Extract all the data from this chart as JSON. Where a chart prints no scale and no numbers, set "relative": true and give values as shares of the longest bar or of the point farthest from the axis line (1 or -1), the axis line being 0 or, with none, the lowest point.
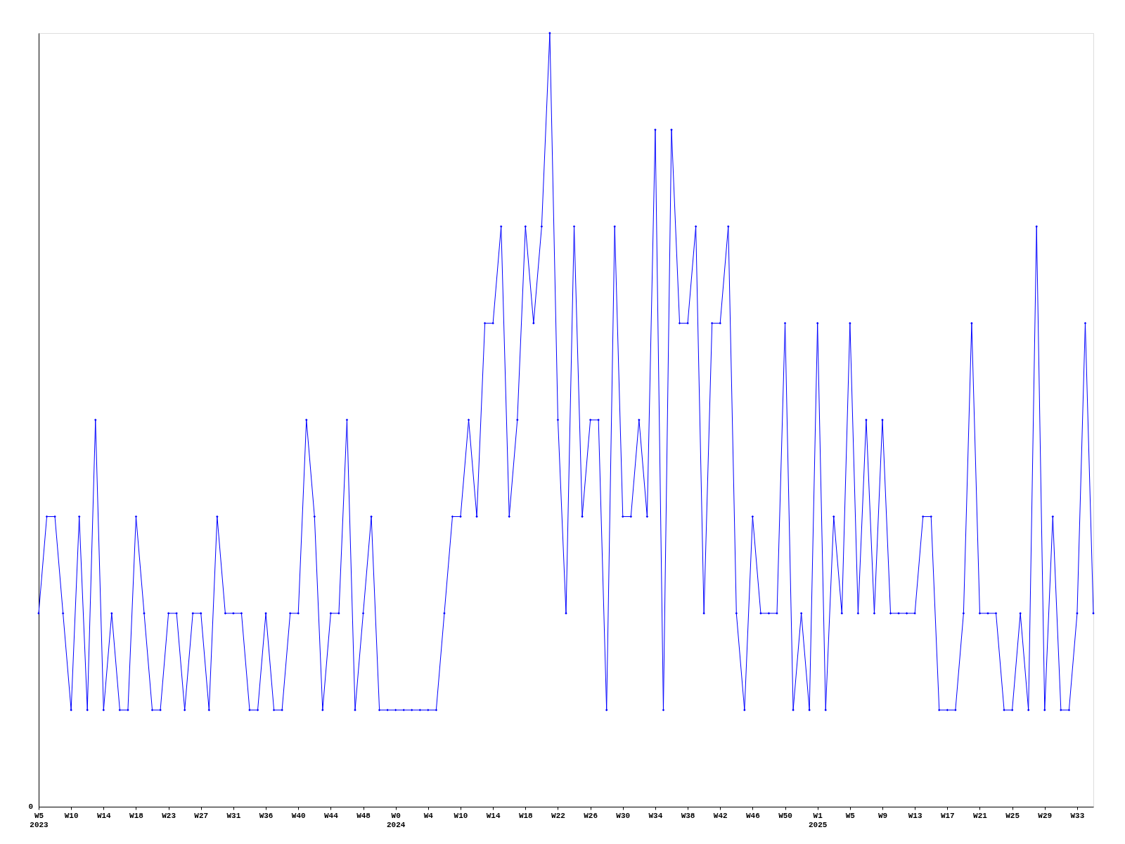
{
  "chart_data": {
    "type": "line",
    "relative": true,
    "marker": "diamond",
    "line_style": "solid",
    "grid": false,
    "categories": [
      "W5\n2023",
      null,
      null,
      null,
      "W10",
      null,
      null,
      null,
      "W14",
      null,
      null,
      null,
      "W18",
      null,
      null,
      null,
      "W23",
      null,
      null,
      null,
      "W27",
      null,
      null,
      null,
      "W31",
      null,
      null,
      null,
      "W36",
      null,
      null,
      null,
      "W40",
      null,
      null,
      null,
      "W44",
      null,
      null,
      null,
      "W48",
      null,
      null,
      null,
      "W0\n2024",
      null,
      null,
      null,
      "W4",
      null,
      null,
      null,
      "W10",
      null,
      null,
      null,
      "W14",
      null,
      null,
      null,
      "W18",
      null,
      null,
      null,
      "W22",
      null,
      null,
      null,
      "W26",
      null,
      null,
      null,
      "W30",
      null,
      null,
      null,
      "W34",
      null,
      null,
      null,
      "W38",
      null,
      null,
      null,
      "W42",
      null,
      null,
      null,
      "W46",
      null,
      null,
      null,
      "W50",
      null,
      null,
      null,
      "W1\n2025",
      null,
      null,
      null,
      "W5",
      null,
      null,
      null,
      "W9",
      null,
      null,
      null,
      "W13",
      null,
      null,
      null,
      "W17",
      null,
      null,
      null,
      "W21",
      null,
      null,
      null,
      "W25",
      null,
      null,
      null,
      "W29",
      null,
      null,
      null,
      "W33",
      null,
      null
    ],
    "series": [
      {
        "color": "#0000ff",
        "values": [
          0.25,
          0.375,
          0.375,
          0.25,
          0.125,
          0.375,
          0.125,
          0.5,
          0.125,
          0.25,
          0.125,
          0.125,
          0.375,
          0.25,
          0.125,
          0.125,
          0.25,
          0.25,
          0.125,
          0.25,
          0.25,
          0.125,
          0.375,
          0.25,
          0.25,
          0.25,
          0.125,
          0.125,
          0.25,
          0.125,
          0.125,
          0.25,
          0.25,
          0.5,
          0.375,
          0.125,
          0.25,
          0.25,
          0.5,
          0.125,
          0.25,
          0.375,
          0.125,
          0.125,
          0.125,
          0.125,
          0.125,
          0.125,
          0.125,
          0.125,
          0.25,
          0.375,
          0.375,
          0.5,
          0.375,
          0.625,
          0.625,
          0.75,
          0.375,
          0.5,
          0.75,
          0.625,
          0.75,
          1,
          0.5,
          0.25,
          0.75,
          0.375,
          0.5,
          0.5,
          0.125,
          0.75,
          0.375,
          0.375,
          0.5,
          0.375,
          0.875,
          0.125,
          0.875,
          0.625,
          0.625,
          0.75,
          0.25,
          0.625,
          0.625,
          0.75,
          0.25,
          0.125,
          0.375,
          0.25,
          0.25,
          0.25,
          0.625,
          0.125,
          0.25,
          0.125,
          0.625,
          0.125,
          0.375,
          0.25,
          0.625,
          0.25,
          0.5,
          0.25,
          0.5,
          0.25,
          0.25,
          0.25,
          0.25,
          0.375,
          0.375,
          0.125,
          0.125,
          0.125,
          0.25,
          0.625,
          0.25,
          0.25,
          0.25,
          0.125,
          0.125,
          0.25,
          0.125,
          0.75,
          0.125,
          0.375,
          0.125,
          0.125,
          0.25,
          0.625,
          0.25
        ]
      }
    ],
    "annotations": [
      "0"
    ]
  }
}
